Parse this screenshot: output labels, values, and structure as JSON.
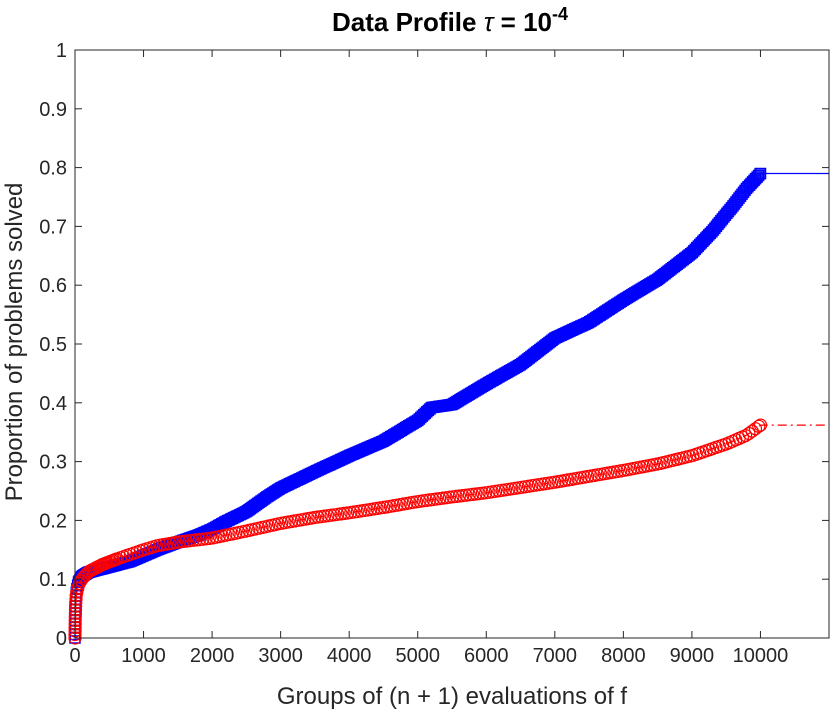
{
  "chart_data": {
    "type": "line",
    "title": {
      "prefix": "Data Profile ",
      "symbol": "τ",
      "equals": " = ",
      "base": "10",
      "exponent": "-4"
    },
    "xlabel": "Groups of (n + 1) evaluations of f",
    "ylabel": "Proportion of problems solved",
    "xlim": [
      0,
      11000
    ],
    "ylim": [
      0,
      1
    ],
    "xticks": [
      0,
      1000,
      2000,
      3000,
      4000,
      5000,
      6000,
      7000,
      8000,
      9000,
      10000
    ],
    "xtick_labels": [
      "0",
      "1000",
      "2000",
      "3000",
      "4000",
      "5000",
      "6000",
      "7000",
      "8000",
      "9000",
      "10000"
    ],
    "yticks": [
      0,
      0.1,
      0.2,
      0.3,
      0.4,
      0.5,
      0.6,
      0.7,
      0.8,
      0.9,
      1
    ],
    "ytick_labels": [
      "0",
      "0.1",
      "0.2",
      "0.3",
      "0.4",
      "0.5",
      "0.6",
      "0.7",
      "0.8",
      "0.9",
      "1"
    ],
    "grid": false,
    "box": true,
    "series": [
      {
        "color": "#0000ff",
        "marker": "square",
        "line_style": "solid",
        "points": [
          [
            0,
            0.0
          ],
          [
            2,
            0.02
          ],
          [
            5,
            0.04
          ],
          [
            10,
            0.06
          ],
          [
            20,
            0.08
          ],
          [
            50,
            0.095
          ],
          [
            100,
            0.105
          ],
          [
            200,
            0.112
          ],
          [
            400,
            0.118
          ],
          [
            600,
            0.124
          ],
          [
            800,
            0.13
          ],
          [
            1000,
            0.14
          ],
          [
            1200,
            0.15
          ],
          [
            1500,
            0.163
          ],
          [
            1800,
            0.175
          ],
          [
            2000,
            0.185
          ],
          [
            2200,
            0.198
          ],
          [
            2500,
            0.215
          ],
          [
            2800,
            0.24
          ],
          [
            3000,
            0.255
          ],
          [
            3500,
            0.283
          ],
          [
            4000,
            0.31
          ],
          [
            4500,
            0.335
          ],
          [
            5000,
            0.37
          ],
          [
            5200,
            0.392
          ],
          [
            5500,
            0.397
          ],
          [
            5800,
            0.418
          ],
          [
            6000,
            0.432
          ],
          [
            6500,
            0.465
          ],
          [
            7000,
            0.51
          ],
          [
            7500,
            0.537
          ],
          [
            8000,
            0.575
          ],
          [
            8500,
            0.61
          ],
          [
            9000,
            0.655
          ],
          [
            9300,
            0.692
          ],
          [
            9600,
            0.735
          ],
          [
            9800,
            0.765
          ],
          [
            10000,
            0.79
          ],
          [
            11000,
            0.79
          ]
        ],
        "marker_until": 10000
      },
      {
        "color": "#ff0000",
        "marker": "circle",
        "line_style": "dashdot",
        "points": [
          [
            0,
            0.0
          ],
          [
            2,
            0.02
          ],
          [
            5,
            0.04
          ],
          [
            10,
            0.06
          ],
          [
            20,
            0.075
          ],
          [
            50,
            0.09
          ],
          [
            100,
            0.1
          ],
          [
            200,
            0.113
          ],
          [
            400,
            0.125
          ],
          [
            600,
            0.134
          ],
          [
            800,
            0.142
          ],
          [
            1000,
            0.15
          ],
          [
            1200,
            0.157
          ],
          [
            1500,
            0.163
          ],
          [
            2000,
            0.17
          ],
          [
            2500,
            0.182
          ],
          [
            3000,
            0.195
          ],
          [
            3500,
            0.205
          ],
          [
            4000,
            0.213
          ],
          [
            4500,
            0.222
          ],
          [
            5000,
            0.232
          ],
          [
            5500,
            0.24
          ],
          [
            6000,
            0.247
          ],
          [
            6500,
            0.256
          ],
          [
            7000,
            0.265
          ],
          [
            7500,
            0.275
          ],
          [
            8000,
            0.285
          ],
          [
            8500,
            0.296
          ],
          [
            9000,
            0.31
          ],
          [
            9500,
            0.33
          ],
          [
            9800,
            0.345
          ],
          [
            10000,
            0.362
          ],
          [
            11000,
            0.362
          ]
        ],
        "marker_until": 10000
      }
    ]
  }
}
